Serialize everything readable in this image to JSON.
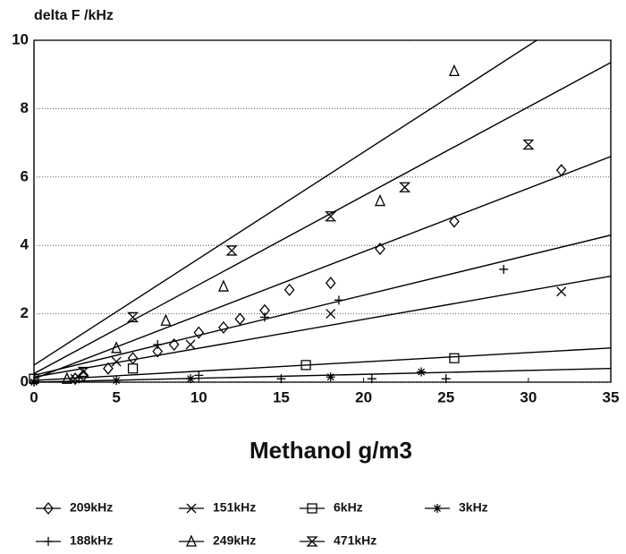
{
  "chart_data": {
    "type": "scatter",
    "y_label": "delta F /kHz",
    "x_label": "Methanol g/m3",
    "xlim": [
      0,
      35
    ],
    "ylim": [
      0,
      10
    ],
    "xticks": [
      0,
      5,
      10,
      15,
      20,
      25,
      30,
      35
    ],
    "yticks": [
      0,
      2,
      4,
      6,
      8,
      10
    ],
    "grid": true,
    "legend": "bottom",
    "series": [
      {
        "name": "209kHz",
        "color": "#000",
        "marker": "diamond",
        "x": [
          2.5,
          3,
          4.5,
          6,
          7.5,
          8.5,
          10,
          11.5,
          12.5,
          14,
          15.5,
          18,
          21,
          25.5,
          32
        ],
        "y": [
          0.1,
          0.2,
          0.4,
          0.7,
          0.9,
          1.1,
          1.45,
          1.6,
          1.85,
          2.1,
          2.7,
          2.9,
          3.9,
          4.7,
          6.2
        ],
        "fit": {
          "x": [
            0,
            35
          ],
          "y": [
            0.1,
            6.6
          ]
        }
      },
      {
        "name": "151kHz",
        "color": "#000",
        "marker": "x",
        "x": [
          2.5,
          5,
          9.5,
          18,
          32
        ],
        "y": [
          0.1,
          0.6,
          1.1,
          2,
          2.65
        ],
        "fit": {
          "x": [
            0,
            35
          ],
          "y": [
            0.15,
            3.1
          ]
        }
      },
      {
        "name": "6kHz",
        "color": "#000",
        "marker": "square",
        "x": [
          0,
          6,
          16.5,
          25.5
        ],
        "y": [
          0.1,
          0.4,
          0.5,
          0.7
        ],
        "fit": {
          "x": [
            0,
            35
          ],
          "y": [
            0.05,
            1.0
          ]
        }
      },
      {
        "name": "3kHz",
        "color": "#000",
        "marker": "asterisk",
        "x": [
          0,
          5,
          9.5,
          18,
          23.5
        ],
        "y": [
          0,
          0.05,
          0.1,
          0.15,
          0.3
        ],
        "fit": {
          "x": [
            0,
            35
          ],
          "y": [
            0,
            0.4
          ]
        }
      },
      {
        "name": "188kHz",
        "color": "#000",
        "marker": "plus",
        "x": [
          0,
          7.5,
          10,
          14,
          15,
          18.5,
          20.5,
          25,
          28.5
        ],
        "y": [
          0.05,
          1.1,
          0.2,
          1.9,
          0.1,
          2.4,
          0.1,
          0.1,
          3.3
        ],
        "fit": {
          "x": [
            0,
            35
          ],
          "y": [
            0.2,
            4.3
          ]
        }
      },
      {
        "name": "249kHz",
        "color": "#000",
        "marker": "triangle",
        "x": [
          2,
          5,
          8,
          11.5,
          21,
          25.5
        ],
        "y": [
          0.1,
          1,
          1.8,
          2.8,
          5.3,
          9.1
        ],
        "fit": {
          "x": [
            0,
            35
          ],
          "y": [
            0.5,
            11.4
          ]
        }
      },
      {
        "name": "471kHz",
        "color": "#000",
        "marker": "hourglass",
        "x": [
          3,
          6,
          12,
          18,
          22.5,
          30
        ],
        "y": [
          0.3,
          1.9,
          3.85,
          4.85,
          5.7,
          6.95
        ],
        "fit": {
          "x": [
            0,
            35
          ],
          "y": [
            0.25,
            9.35
          ]
        }
      }
    ]
  }
}
